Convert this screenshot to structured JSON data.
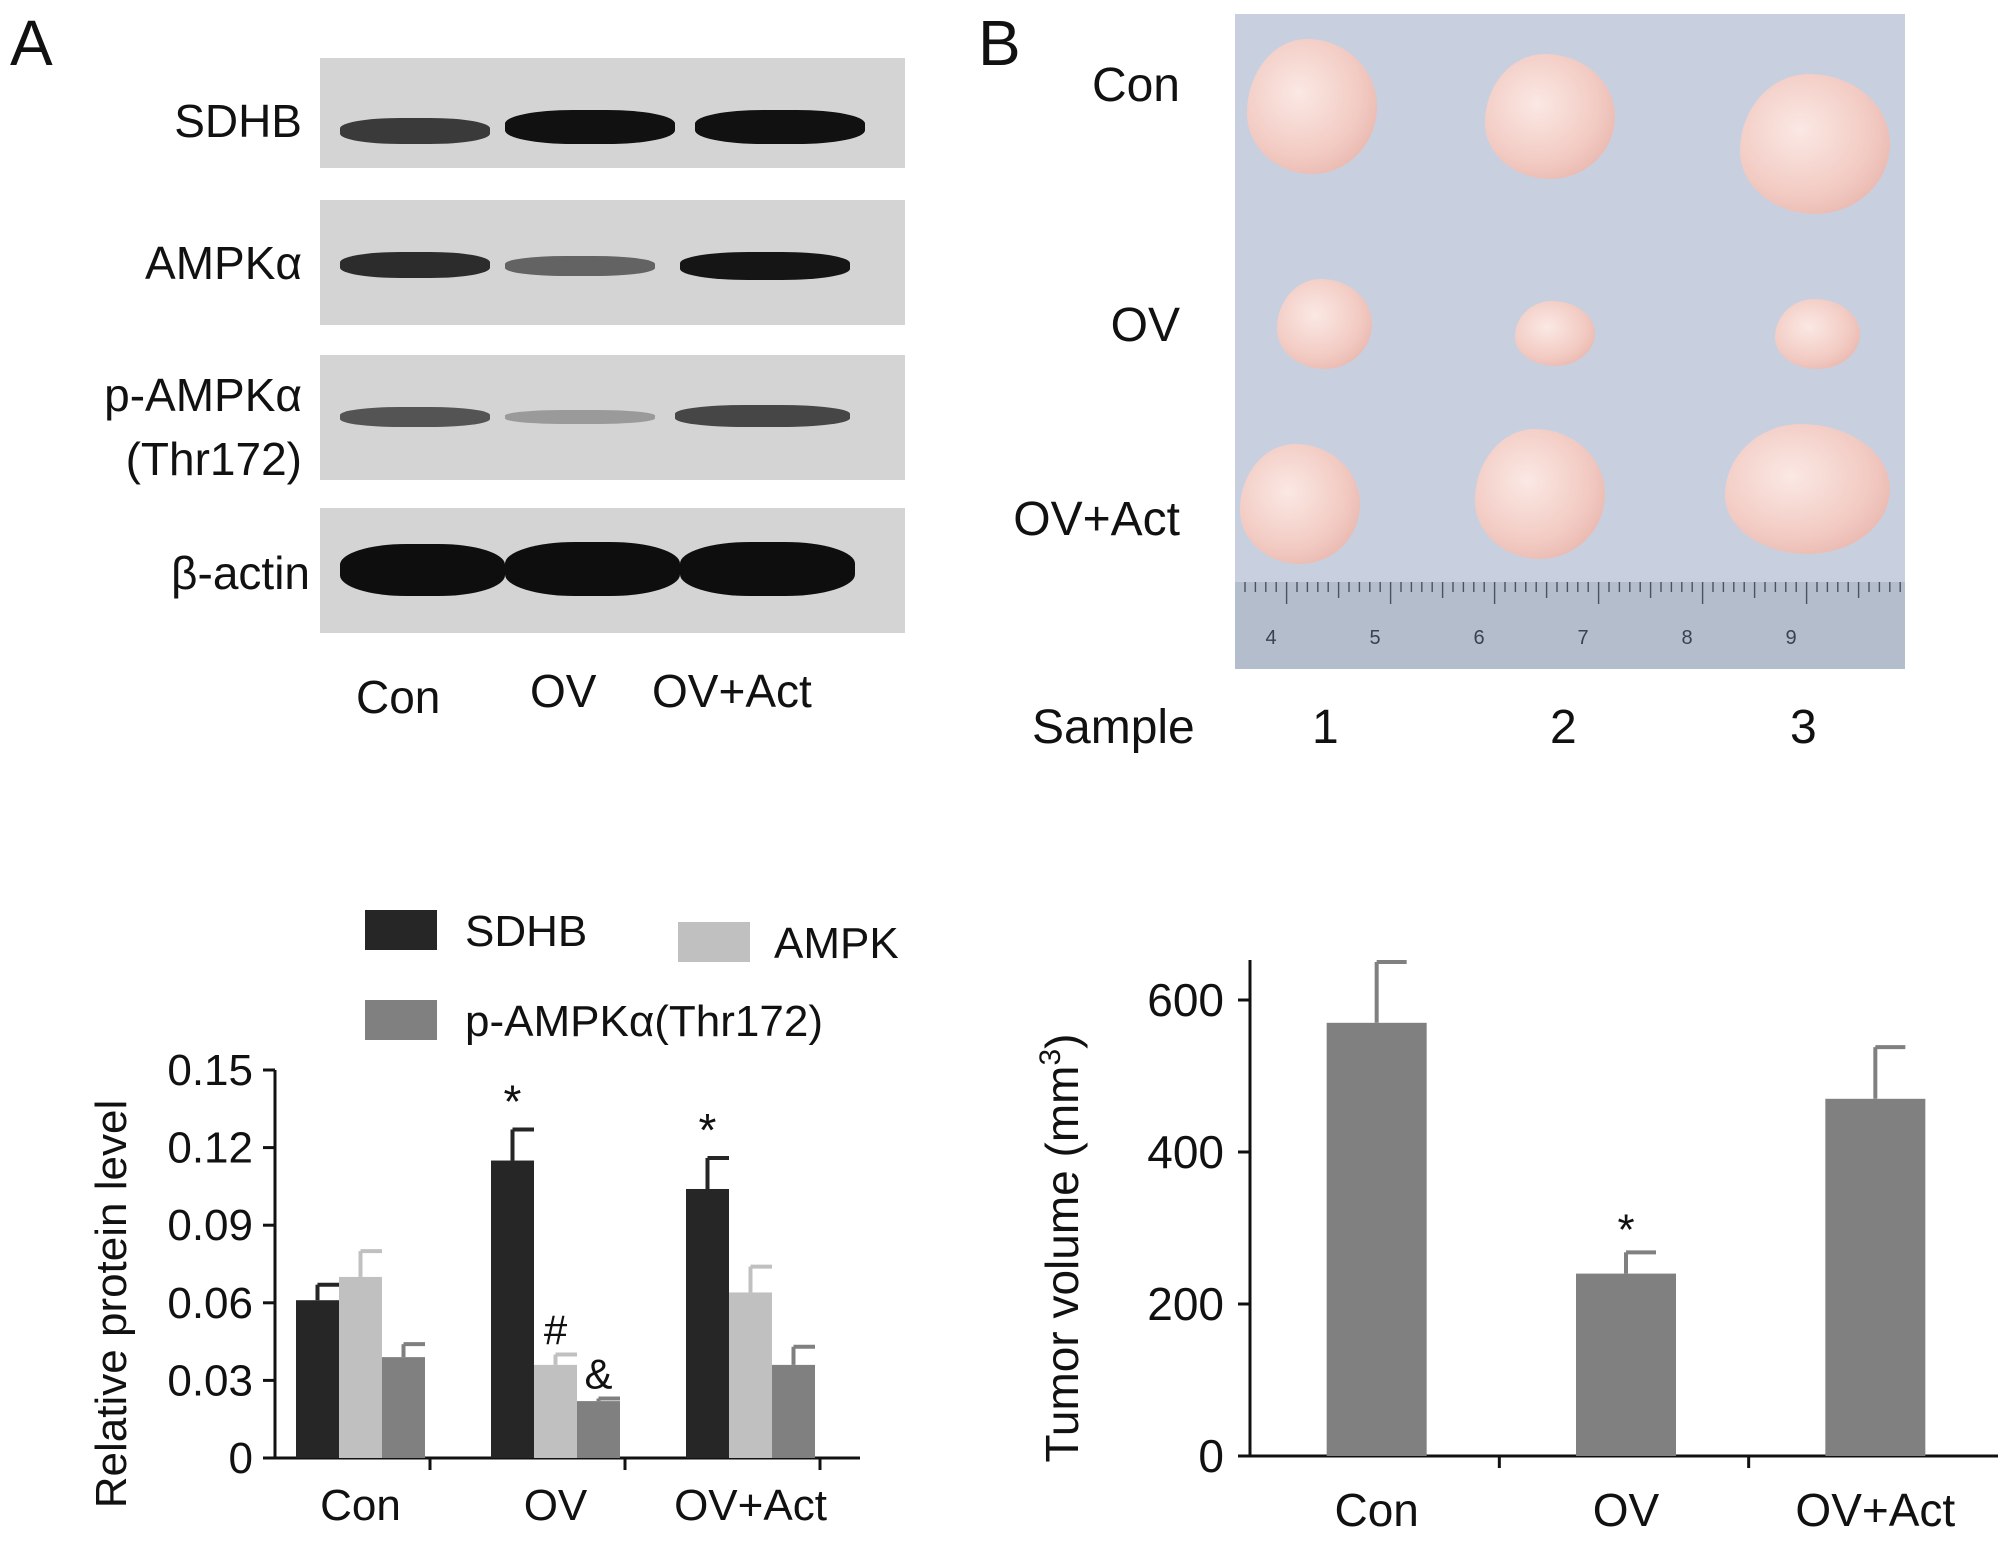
{
  "panel_labels": {
    "a": "A",
    "b": "B"
  },
  "blot": {
    "rows": [
      {
        "label": "SDHB",
        "intensity": [
          0.85,
          1.0,
          1.0
        ]
      },
      {
        "label": "AMPKα",
        "intensity": [
          0.9,
          0.55,
          0.9
        ]
      },
      {
        "label_line1": "p-AMPKα",
        "label_line2": "(Thr172)",
        "intensity": [
          0.65,
          0.3,
          0.7
        ]
      },
      {
        "label": "β-actin",
        "intensity": [
          1.0,
          1.0,
          1.0
        ]
      }
    ],
    "lanes": [
      "Con",
      "OV",
      "OV+Act"
    ]
  },
  "photo": {
    "rows": [
      "Con",
      "OV",
      "OV+Act"
    ],
    "sample_label": "Sample",
    "samples": [
      "1",
      "2",
      "3"
    ],
    "ruler_numbers": [
      "4",
      "5",
      "6",
      "7",
      "8",
      "9"
    ],
    "colors": {
      "background": "#c8d0df",
      "tumor": "#f2cbc3"
    }
  },
  "chart_data": [
    {
      "type": "bar",
      "categories": [
        "Con",
        "OV",
        "OV+Act"
      ],
      "series": [
        {
          "name": "SDHB",
          "values": [
            0.061,
            0.115,
            0.104
          ],
          "errors": [
            0.006,
            0.012,
            0.012
          ],
          "color": "#262626"
        },
        {
          "name": "AMPKα",
          "values": [
            0.07,
            0.036,
            0.064
          ],
          "errors": [
            0.01,
            0.004,
            0.01
          ],
          "color": "#c0c0c0"
        },
        {
          "name": "p-AMPKα(Thr172)",
          "values": [
            0.039,
            0.022,
            0.036
          ],
          "errors": [
            0.005,
            0.001,
            0.007
          ],
          "color": "#808080"
        }
      ],
      "annotations": [
        {
          "category": "OV",
          "series": "SDHB",
          "text": "*"
        },
        {
          "category": "OV+Act",
          "series": "SDHB",
          "text": "*"
        },
        {
          "category": "OV",
          "series": "AMPKα",
          "text": "#"
        },
        {
          "category": "OV",
          "series": "p-AMPKα(Thr172)",
          "text": "&"
        }
      ],
      "ylabel": "Relative protein level",
      "ylim": [
        0,
        0.15
      ],
      "yticks": [
        "0",
        "0.03",
        "0.06",
        "0.09",
        "0.12",
        "0.15"
      ],
      "legend": "top"
    },
    {
      "type": "bar",
      "categories": [
        "Con",
        "OV",
        "OV+Act"
      ],
      "values": [
        570,
        240,
        470
      ],
      "errors": [
        80,
        28,
        68
      ],
      "color": "#808080",
      "annotations": [
        {
          "category": "OV",
          "text": "*"
        }
      ],
      "ylabel": "Tumor volume (mm",
      "ylabel_sup": "3",
      "ylabel_end": ")",
      "ylim": [
        0,
        600
      ],
      "yticks": [
        "0",
        "200",
        "400",
        "600"
      ]
    }
  ]
}
